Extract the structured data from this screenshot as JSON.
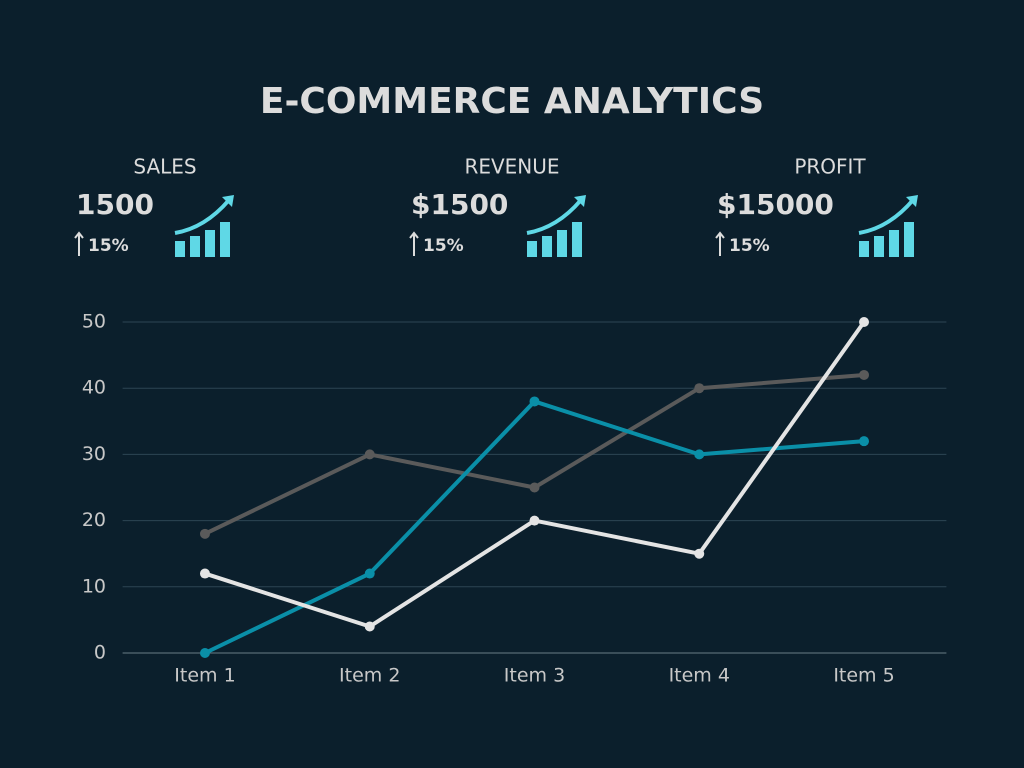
{
  "title": "E-COMMERCE ANALYTICS",
  "kpis": [
    {
      "label": "SALES",
      "value": "1500",
      "change": "15%"
    },
    {
      "label": "REVENUE",
      "value": "$1500",
      "change": "15%"
    },
    {
      "label": "PROFIT",
      "value": "$15000",
      "change": "15%"
    }
  ],
  "chart_data": {
    "type": "line",
    "categories": [
      "Item 1",
      "Item 2",
      "Item 3",
      "Item 4",
      "Item 5"
    ],
    "series": [
      {
        "color": "#5a5a5a",
        "values": [
          18,
          30,
          25,
          40,
          42
        ]
      },
      {
        "color": "#0a8fa8",
        "values": [
          0,
          12,
          38,
          30,
          32
        ]
      },
      {
        "color": "#e4e4e4",
        "values": [
          12,
          4,
          20,
          15,
          50
        ]
      }
    ],
    "ylim": [
      0,
      50
    ],
    "yticks": [
      0,
      10,
      20,
      30,
      40,
      50
    ],
    "grid": true
  }
}
